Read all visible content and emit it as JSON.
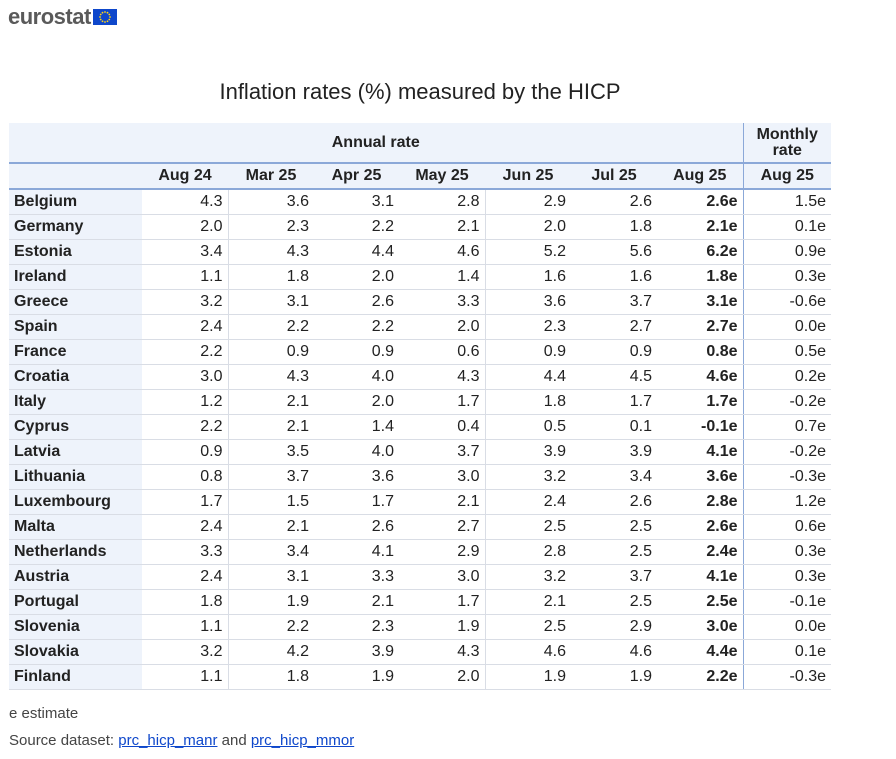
{
  "brand": {
    "name": "eurostat",
    "flag_color": "#0e47cb",
    "star_color": "#ffd617"
  },
  "chart_data": {
    "type": "table",
    "title": "Inflation rates (%) measured by the HICP",
    "group_headers": {
      "annual": "Annual rate",
      "monthly": "Monthly rate"
    },
    "columns": [
      "Aug 24",
      "Mar 25",
      "Apr 25",
      "May 25",
      "Jun 25",
      "Jul 25",
      "Aug 25",
      "Aug 25"
    ],
    "rows": [
      {
        "country": "Belgium",
        "values": [
          "4.3",
          "3.6",
          "3.1",
          "2.8",
          "2.9",
          "2.6",
          "2.6e",
          "1.5e"
        ]
      },
      {
        "country": "Germany",
        "values": [
          "2.0",
          "2.3",
          "2.2",
          "2.1",
          "2.0",
          "1.8",
          "2.1e",
          "0.1e"
        ]
      },
      {
        "country": "Estonia",
        "values": [
          "3.4",
          "4.3",
          "4.4",
          "4.6",
          "5.2",
          "5.6",
          "6.2e",
          "0.9e"
        ]
      },
      {
        "country": "Ireland",
        "values": [
          "1.1",
          "1.8",
          "2.0",
          "1.4",
          "1.6",
          "1.6",
          "1.8e",
          "0.3e"
        ]
      },
      {
        "country": "Greece",
        "values": [
          "3.2",
          "3.1",
          "2.6",
          "3.3",
          "3.6",
          "3.7",
          "3.1e",
          "-0.6e"
        ]
      },
      {
        "country": "Spain",
        "values": [
          "2.4",
          "2.2",
          "2.2",
          "2.0",
          "2.3",
          "2.7",
          "2.7e",
          "0.0e"
        ]
      },
      {
        "country": "France",
        "values": [
          "2.2",
          "0.9",
          "0.9",
          "0.6",
          "0.9",
          "0.9",
          "0.8e",
          "0.5e"
        ]
      },
      {
        "country": "Croatia",
        "values": [
          "3.0",
          "4.3",
          "4.0",
          "4.3",
          "4.4",
          "4.5",
          "4.6e",
          "0.2e"
        ]
      },
      {
        "country": "Italy",
        "values": [
          "1.2",
          "2.1",
          "2.0",
          "1.7",
          "1.8",
          "1.7",
          "1.7e",
          "-0.2e"
        ]
      },
      {
        "country": "Cyprus",
        "values": [
          "2.2",
          "2.1",
          "1.4",
          "0.4",
          "0.5",
          "0.1",
          "-0.1e",
          "0.7e"
        ]
      },
      {
        "country": "Latvia",
        "values": [
          "0.9",
          "3.5",
          "4.0",
          "3.7",
          "3.9",
          "3.9",
          "4.1e",
          "-0.2e"
        ]
      },
      {
        "country": "Lithuania",
        "values": [
          "0.8",
          "3.7",
          "3.6",
          "3.0",
          "3.2",
          "3.4",
          "3.6e",
          "-0.3e"
        ]
      },
      {
        "country": "Luxembourg",
        "values": [
          "1.7",
          "1.5",
          "1.7",
          "2.1",
          "2.4",
          "2.6",
          "2.8e",
          "1.2e"
        ]
      },
      {
        "country": "Malta",
        "values": [
          "2.4",
          "2.1",
          "2.6",
          "2.7",
          "2.5",
          "2.5",
          "2.6e",
          "0.6e"
        ]
      },
      {
        "country": "Netherlands",
        "values": [
          "3.3",
          "3.4",
          "4.1",
          "2.9",
          "2.8",
          "2.5",
          "2.4e",
          "0.3e"
        ]
      },
      {
        "country": "Austria",
        "values": [
          "2.4",
          "3.1",
          "3.3",
          "3.0",
          "3.2",
          "3.7",
          "4.1e",
          "0.3e"
        ]
      },
      {
        "country": "Portugal",
        "values": [
          "1.8",
          "1.9",
          "2.1",
          "1.7",
          "2.1",
          "2.5",
          "2.5e",
          "-0.1e"
        ]
      },
      {
        "country": "Slovenia",
        "values": [
          "1.1",
          "2.2",
          "2.3",
          "1.9",
          "2.5",
          "2.9",
          "3.0e",
          "0.0e"
        ]
      },
      {
        "country": "Slovakia",
        "values": [
          "3.2",
          "4.2",
          "3.9",
          "4.3",
          "4.6",
          "4.6",
          "4.4e",
          "0.1e"
        ]
      },
      {
        "country": "Finland",
        "values": [
          "1.1",
          "1.8",
          "1.9",
          "2.0",
          "1.9",
          "1.9",
          "2.2e",
          "-0.3e"
        ]
      }
    ]
  },
  "footnote": "e estimate",
  "source": {
    "prefix": "Source dataset:",
    "link1": "prc_hicp_manr",
    "and": "and",
    "link2": "prc_hicp_mmor"
  },
  "colors": {
    "header_bg": "#eef3fb",
    "accent_border": "#8ba8d8",
    "link": "#0e47cb"
  }
}
